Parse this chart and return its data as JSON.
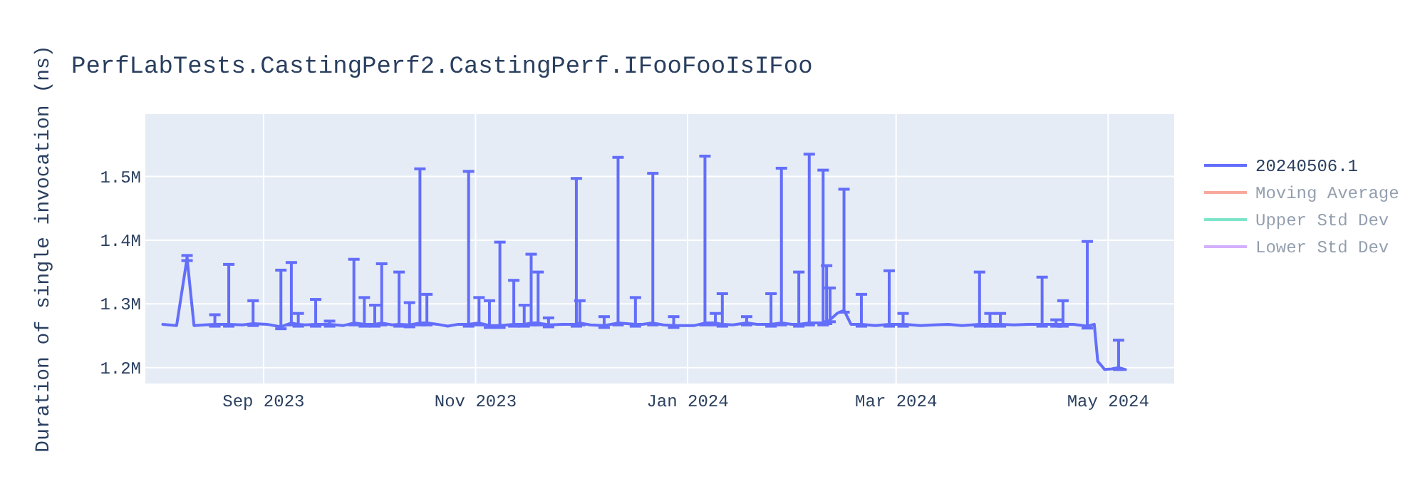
{
  "chart_data": {
    "type": "line",
    "title": "PerfLabTests.CastingPerf2.CastingPerf.IFooFooIsIFoo",
    "ylabel": "Duration of single invocation (ns)",
    "x": [
      "2023-08-03",
      "2023-08-07",
      "2023-08-10",
      "2023-08-12",
      "2023-08-15",
      "2023-08-18",
      "2023-08-22",
      "2023-08-26",
      "2023-08-29",
      "2023-09-02",
      "2023-09-06",
      "2023-09-09",
      "2023-09-11",
      "2023-09-13",
      "2023-09-16",
      "2023-09-20",
      "2023-09-24",
      "2023-09-27",
      "2023-09-30",
      "2023-10-03",
      "2023-10-05",
      "2023-10-08",
      "2023-10-10",
      "2023-10-13",
      "2023-10-16",
      "2023-10-18",
      "2023-10-21",
      "2023-10-24",
      "2023-10-27",
      "2023-10-30",
      "2023-11-02",
      "2023-11-05",
      "2023-11-08",
      "2023-11-12",
      "2023-11-15",
      "2023-11-17",
      "2023-11-19",
      "2023-11-22",
      "2023-11-26",
      "2023-11-30",
      "2023-12-01",
      "2023-12-04",
      "2023-12-08",
      "2023-12-12",
      "2023-12-17",
      "2023-12-19",
      "2023-12-22",
      "2023-12-25",
      "2023-12-28",
      "2023-12-31",
      "2024-01-03",
      "2024-01-06",
      "2024-01-09",
      "2024-01-11",
      "2024-01-14",
      "2024-01-18",
      "2024-01-21",
      "2024-01-25",
      "2024-01-28",
      "2024-01-31",
      "2024-02-02",
      "2024-02-05",
      "2024-02-09",
      "2024-02-10",
      "2024-02-11",
      "2024-02-13",
      "2024-02-15",
      "2024-02-17",
      "2024-02-20",
      "2024-02-24",
      "2024-02-28",
      "2024-03-03",
      "2024-03-08",
      "2024-03-12",
      "2024-03-16",
      "2024-03-20",
      "2024-03-25",
      "2024-03-28",
      "2024-03-31",
      "2024-04-04",
      "2024-04-08",
      "2024-04-12",
      "2024-04-16",
      "2024-04-18",
      "2024-04-21",
      "2024-04-25",
      "2024-04-27",
      "2024-04-28",
      "2024-04-30",
      "2024-05-02",
      "2024-05-04",
      "2024-05-06"
    ],
    "series": [
      {
        "name": "20240506.1",
        "color": "#636efa",
        "values": [
          1268000,
          1266000,
          1372000,
          1266000,
          1267000,
          1268000,
          1268000,
          1267000,
          1269000,
          1268000,
          1264000,
          1270000,
          1268000,
          1267000,
          1268000,
          1268000,
          1266000,
          1270000,
          1268000,
          1268000,
          1270000,
          1267000,
          1268000,
          1267000,
          1270000,
          1270000,
          1268000,
          1265000,
          1268000,
          1268000,
          1270000,
          1266000,
          1266000,
          1268000,
          1268000,
          1270000,
          1270000,
          1267000,
          1268000,
          1268000,
          1270000,
          1267000,
          1266000,
          1270000,
          1268000,
          1268000,
          1270000,
          1267000,
          1266000,
          1266000,
          1266000,
          1270000,
          1270000,
          1268000,
          1267000,
          1270000,
          1268000,
          1268000,
          1270000,
          1268000,
          1268000,
          1270000,
          1270000,
          1272000,
          1275000,
          1285000,
          1290000,
          1268000,
          1268000,
          1266000,
          1268000,
          1268000,
          1266000,
          1267000,
          1268000,
          1266000,
          1268000,
          1268000,
          1268000,
          1267000,
          1268000,
          1268000,
          1268000,
          1268000,
          1268000,
          1265000,
          1268000,
          1210000,
          1197000,
          1198000,
          1200000,
          1197000
        ],
        "errors": [
          null,
          null,
          [
            1368000,
            1376000
          ],
          null,
          null,
          [
            1265000,
            1283000
          ],
          [
            1265000,
            1362000
          ],
          null,
          [
            1266000,
            1305000
          ],
          null,
          [
            1261000,
            1353000
          ],
          [
            1267000,
            1365000
          ],
          [
            1265000,
            1285000
          ],
          null,
          [
            1265000,
            1307000
          ],
          [
            1265000,
            1273000
          ],
          null,
          [
            1267000,
            1370000
          ],
          [
            1265000,
            1310000
          ],
          [
            1265000,
            1298000
          ],
          [
            1267000,
            1363000
          ],
          null,
          [
            1265000,
            1350000
          ],
          [
            1264000,
            1302000
          ],
          [
            1267000,
            1512000
          ],
          [
            1267000,
            1315000
          ],
          null,
          null,
          null,
          [
            1265000,
            1508000
          ],
          [
            1267000,
            1310000
          ],
          [
            1263000,
            1305000
          ],
          [
            1263000,
            1397000
          ],
          [
            1265000,
            1337000
          ],
          [
            1265000,
            1298000
          ],
          [
            1267000,
            1378000
          ],
          [
            1267000,
            1350000
          ],
          [
            1264000,
            1278000
          ],
          null,
          [
            1265000,
            1497000
          ],
          [
            1267000,
            1305000
          ],
          null,
          [
            1263000,
            1280000
          ],
          [
            1267000,
            1530000
          ],
          [
            1265000,
            1310000
          ],
          null,
          [
            1267000,
            1505000
          ],
          null,
          [
            1263000,
            1280000
          ],
          null,
          null,
          [
            1267000,
            1532000
          ],
          [
            1267000,
            1285000
          ],
          [
            1265000,
            1316000
          ],
          null,
          [
            1267000,
            1280000
          ],
          null,
          [
            1265000,
            1316000
          ],
          [
            1267000,
            1513000
          ],
          null,
          [
            1265000,
            1350000
          ],
          [
            1267000,
            1535000
          ],
          [
            1267000,
            1510000
          ],
          [
            1269000,
            1360000
          ],
          [
            1272000,
            1325000
          ],
          null,
          [
            1287000,
            1480000
          ],
          null,
          [
            1265000,
            1315000
          ],
          null,
          [
            1265000,
            1352000
          ],
          [
            1265000,
            1285000
          ],
          null,
          null,
          null,
          null,
          [
            1265000,
            1350000
          ],
          [
            1265000,
            1285000
          ],
          [
            1265000,
            1285000
          ],
          null,
          null,
          [
            1265000,
            1342000
          ],
          [
            1265000,
            1275000
          ],
          [
            1265000,
            1305000
          ],
          null,
          [
            1262000,
            1398000
          ],
          null,
          null,
          null,
          null,
          [
            1197000,
            1243000
          ],
          null
        ]
      },
      {
        "name": "Moving Average",
        "color": "#ef553b",
        "values": [
          null,
          null,
          null,
          null,
          null,
          null,
          null,
          null,
          null,
          null,
          null,
          null,
          null,
          null,
          null,
          null,
          null,
          null,
          null,
          null,
          null,
          null,
          null,
          null,
          null,
          null,
          null,
          null,
          null,
          null,
          null,
          null,
          null,
          null,
          null,
          null,
          null,
          null,
          null,
          null,
          null,
          null,
          null,
          null,
          null,
          null,
          null,
          null,
          null,
          null,
          null,
          null,
          null,
          null,
          null,
          null,
          null,
          null,
          null,
          null,
          null,
          null,
          null,
          null,
          null,
          null,
          null,
          null,
          null,
          null,
          null,
          null,
          null,
          null,
          null,
          null,
          null,
          null,
          null,
          null,
          null,
          null,
          null,
          null,
          null,
          null,
          null,
          null,
          null,
          null,
          null,
          null
        ]
      },
      {
        "name": "Upper Std Dev",
        "color": "#00cc96",
        "values": [
          null,
          null,
          null,
          null,
          null,
          null,
          null,
          null,
          null,
          null,
          null,
          null,
          null,
          null,
          null,
          null,
          null,
          null,
          null,
          null,
          null,
          null,
          null,
          null,
          null,
          null,
          null,
          null,
          null,
          null,
          null,
          null,
          null,
          null,
          null,
          null,
          null,
          null,
          null,
          null,
          null,
          null,
          null,
          null,
          null,
          null,
          null,
          null,
          null,
          null,
          null,
          null,
          null,
          null,
          null,
          null,
          null,
          null,
          null,
          null,
          null,
          null,
          null,
          null,
          null,
          null,
          null,
          null,
          null,
          null,
          null,
          null,
          null,
          null,
          null,
          null,
          null,
          null,
          null,
          null,
          null,
          null,
          null,
          null,
          null,
          null,
          null,
          null,
          null,
          null,
          null,
          null
        ]
      },
      {
        "name": "Lower Std Dev",
        "color": "#ab63fa",
        "values": [
          null,
          null,
          null,
          null,
          null,
          null,
          null,
          null,
          null,
          null,
          null,
          null,
          null,
          null,
          null,
          null,
          null,
          null,
          null,
          null,
          null,
          null,
          null,
          null,
          null,
          null,
          null,
          null,
          null,
          null,
          null,
          null,
          null,
          null,
          null,
          null,
          null,
          null,
          null,
          null,
          null,
          null,
          null,
          null,
          null,
          null,
          null,
          null,
          null,
          null,
          null,
          null,
          null,
          null,
          null,
          null,
          null,
          null,
          null,
          null,
          null,
          null,
          null,
          null,
          null,
          null,
          null,
          null,
          null,
          null,
          null,
          null,
          null,
          null,
          null,
          null,
          null,
          null,
          null,
          null,
          null,
          null,
          null,
          null,
          null,
          null,
          null,
          null,
          null,
          null,
          null,
          null
        ]
      }
    ],
    "xlim": [
      "2023-07-29",
      "2024-05-20"
    ],
    "xticks": [
      {
        "value": "2023-09-01",
        "label": "Sep 2023"
      },
      {
        "value": "2023-11-01",
        "label": "Nov 2023"
      },
      {
        "value": "2024-01-01",
        "label": "Jan 2024"
      },
      {
        "value": "2024-03-01",
        "label": "Mar 2024"
      },
      {
        "value": "2024-05-01",
        "label": "May 2024"
      }
    ],
    "ylim": [
      1175000,
      1598000
    ],
    "yticks": [
      {
        "value": 1200000,
        "label": "1.2M"
      },
      {
        "value": 1300000,
        "label": "1.3M"
      },
      {
        "value": 1400000,
        "label": "1.4M"
      },
      {
        "value": 1500000,
        "label": "1.5M"
      }
    ],
    "grid": true,
    "legend": "right",
    "marker": "none",
    "line_style": "solid"
  }
}
